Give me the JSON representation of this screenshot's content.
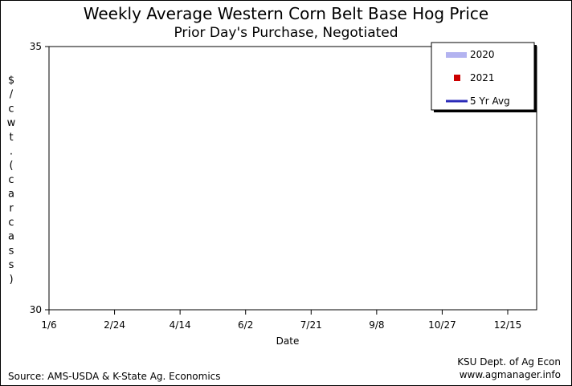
{
  "chart_data": {
    "type": "line",
    "title": "Weekly Average Western Corn Belt Base Hog Price",
    "subtitle": "Prior Day's Purchase, Negotiated",
    "xlabel": "Date",
    "ylabel": "$/cwt. (carcass)",
    "ylim": [
      30,
      35
    ],
    "yticks": [
      "30",
      "35"
    ],
    "x_ticks": [
      "1/6",
      "2/24",
      "4/14",
      "6/2",
      "7/21",
      "9/8",
      "10/27",
      "12/15"
    ],
    "grid": false,
    "legend_position": "top-right",
    "series": [
      {
        "name": "2020",
        "color": "#b3b3f0",
        "marker": "band",
        "values": []
      },
      {
        "name": "2021",
        "color": "#cc0000",
        "marker": "square",
        "values": []
      },
      {
        "name": "5 Yr Avg",
        "color": "#2b2bb8",
        "marker": "line",
        "values": []
      }
    ]
  },
  "footer": {
    "source": "Source: AMS-USDA & K-State Ag. Economics",
    "credit_line1": "KSU Dept. of Ag Econ",
    "credit_line2": "www.agmanager.info"
  }
}
